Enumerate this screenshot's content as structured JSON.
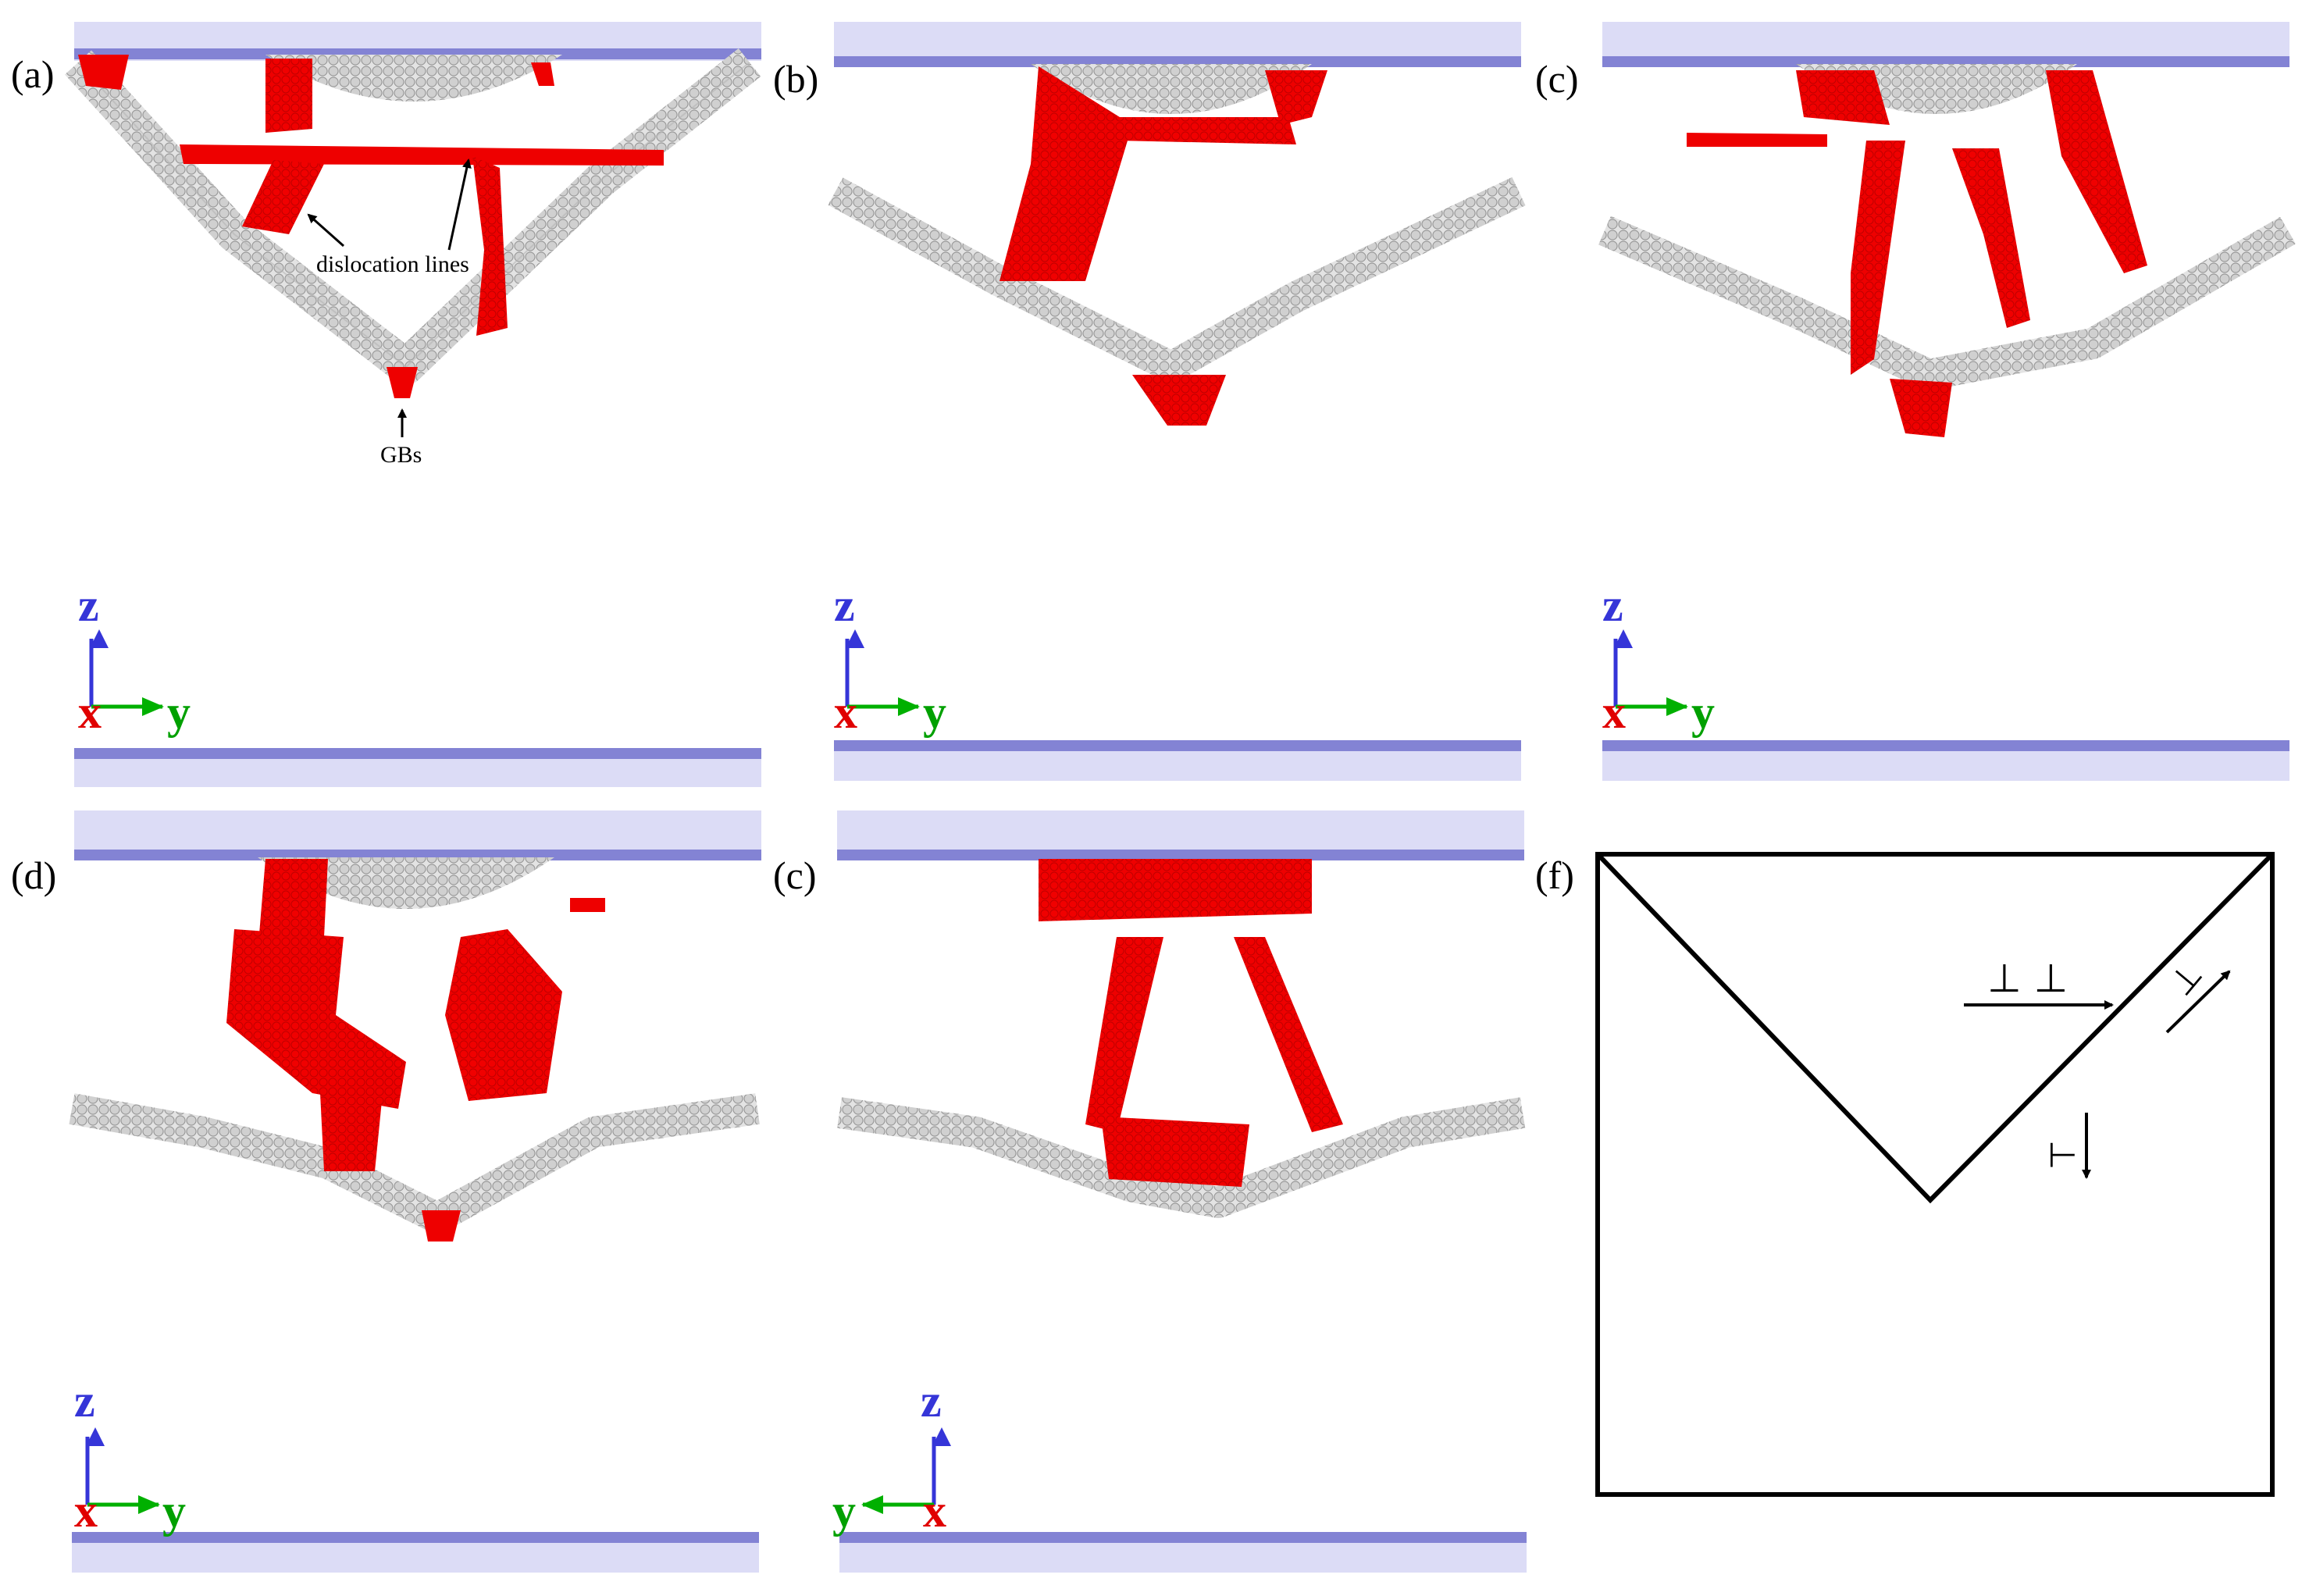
{
  "figure": {
    "panels": [
      {
        "id": "a",
        "label": "(a)",
        "coord_x": "x",
        "coord_y": "y",
        "coord_z": "z",
        "y_direction": "right"
      },
      {
        "id": "b",
        "label": "(b)",
        "coord_x": "x",
        "coord_y": "y",
        "coord_z": "z",
        "y_direction": "right"
      },
      {
        "id": "c",
        "label": "(c)",
        "coord_x": "x",
        "coord_y": "y",
        "coord_z": "z",
        "y_direction": "right"
      },
      {
        "id": "d",
        "label": "(d)",
        "coord_x": "x",
        "coord_y": "y",
        "coord_z": "z",
        "y_direction": "right"
      },
      {
        "id": "e",
        "label": "(c)",
        "coord_x": "x",
        "coord_y": "y",
        "coord_z": "z",
        "y_direction": "left"
      },
      {
        "id": "f",
        "label": "(f)"
      }
    ],
    "annotations": {
      "dislocation_lines": "dislocation lines",
      "gbs": "GBs"
    },
    "schematic_symbols": {
      "dislocation": "⊥ ⊥",
      "dislocation_rotated": "⊥",
      "gb_dislocation": "⊥"
    },
    "colors": {
      "plate": "#dcdcf6",
      "plate_edge": "#7f7fd0",
      "atom_grey": "#d2d2d2",
      "stacking_fault_red": "#ee0000",
      "axis_x": "#e00000",
      "axis_y": "#00a000",
      "axis_z": "#3535d8"
    }
  }
}
